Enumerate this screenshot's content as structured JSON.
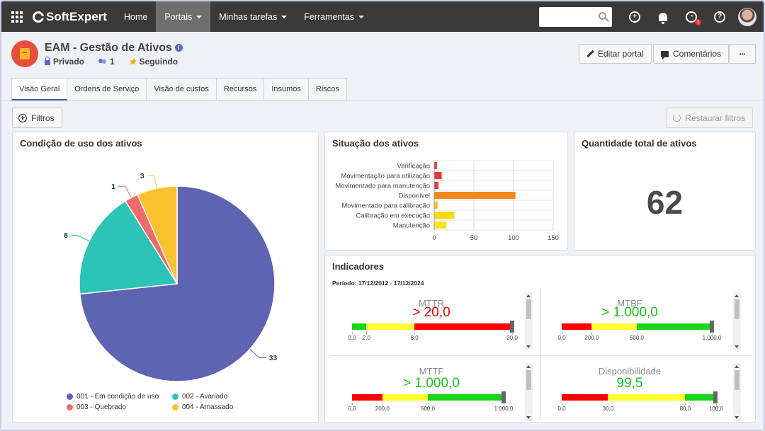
{
  "nav": {
    "logo": "SoftExpert",
    "items": [
      "Home",
      "Portais",
      "Minhas tarefas",
      "Ferramentas"
    ],
    "notification_count": "1"
  },
  "header": {
    "title": "EAM - Gestão de Ativos",
    "privacy": "Privado",
    "members": "1",
    "follow": "Seguindo",
    "edit_label": "Editar portal",
    "comments_label": "Comentários",
    "more_label": "•••"
  },
  "tabs": [
    "Visão Geral",
    "Ordens de Serviço",
    "Visão de custos",
    "Recursos",
    "Insumos",
    "Riscos"
  ],
  "filters": {
    "filter_label": "Filtros",
    "restore_label": "Restaurar filtros"
  },
  "colors": {
    "blue": "#5e63b2",
    "teal": "#2bc4b7",
    "red": "#ef6b6b",
    "yellow": "#fbc02d",
    "orange": "#f28a1a"
  },
  "chart_data": [
    {
      "type": "pie",
      "title": "Condição de uso dos ativos",
      "slices": [
        {
          "label": "001 - Em condição de uso",
          "value": 33,
          "color": "#5e63b2"
        },
        {
          "label": "002 - Avariado",
          "value": 8,
          "color": "#2bc4b7"
        },
        {
          "label": "003 - Quebrado",
          "value": 1,
          "color": "#ef6b6b"
        },
        {
          "label": "004 - Amassado",
          "value": 3,
          "color": "#fbc02d"
        }
      ],
      "legend": "bottom"
    },
    {
      "type": "bar",
      "orientation": "horizontal",
      "title": "Situação dos ativos",
      "categories": [
        "Verificação",
        "Movimentação para utilização",
        "Movimentado para manutenção",
        "Disponível",
        "Movimentado para calibração",
        "Calibração em execução",
        "Manutenção"
      ],
      "values": [
        3,
        9,
        5,
        102,
        4,
        25,
        15
      ],
      "colors": [
        "#e53935",
        "#e53935",
        "#e53935",
        "#f28a1a",
        "#fbc02d",
        "#f5d90a",
        "#f5e61a"
      ],
      "xlim": [
        0,
        150
      ],
      "xticks": [
        0,
        50,
        100,
        150
      ],
      "grid": true
    }
  ],
  "total": {
    "title": "Quantidade total de ativos",
    "value": "62"
  },
  "indicators": {
    "title": "Indicadores",
    "period": "Período: 17/12/2012 - 17/12/2024",
    "gauges": [
      {
        "name": "MTTR",
        "value": "> 20,0",
        "color": "#e00000",
        "ticks": [
          "0,0",
          "2,0",
          "8,0",
          "20,0"
        ],
        "segments": [
          "green",
          "yellow",
          "red"
        ],
        "level": 1.0
      },
      {
        "name": "MTBF",
        "value": "> 1.000,0",
        "color": "#19c419",
        "ticks": [
          "0,0",
          "200,0",
          "500,0",
          "1.000,0"
        ],
        "segments": [
          "red",
          "yellow",
          "green"
        ],
        "level": 1.0
      },
      {
        "name": "MTTF",
        "value": "> 1.000,0",
        "color": "#19c419",
        "ticks": [
          "0,0",
          "200,0",
          "500,0",
          "1.000,0"
        ],
        "segments": [
          "red",
          "yellow",
          "green"
        ],
        "level": 1.0
      },
      {
        "name": "Disponibilidade",
        "value": "99,5",
        "color": "#19c419",
        "ticks": [
          "0,0",
          "30,0",
          "80,0",
          "100,0"
        ],
        "segments": [
          "red",
          "yellow",
          "green"
        ],
        "level": 0.995
      }
    ]
  }
}
